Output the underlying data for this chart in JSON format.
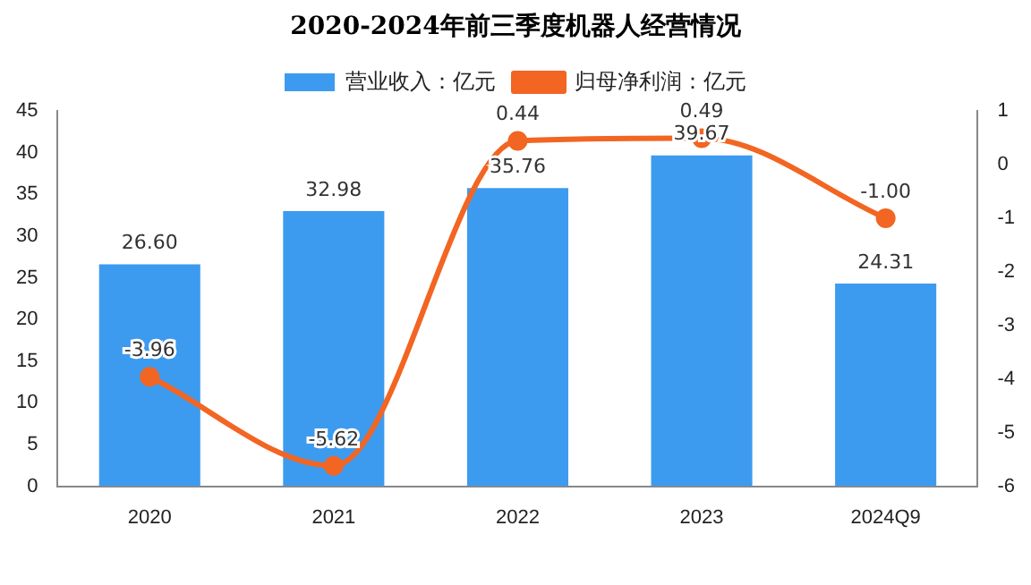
{
  "chart_data": {
    "type": "bar",
    "title": "2020-2024年前三季度机器人经营情况",
    "categories": [
      "2020",
      "2021",
      "2022",
      "2023",
      "2024Q9"
    ],
    "series": [
      {
        "name": "营业收入：亿元",
        "color": "#3d9bef",
        "values": [
          26.6,
          32.98,
          35.76,
          39.67,
          24.31
        ],
        "value_labels": [
          "26.60",
          "32.98",
          "35.76",
          "39.67",
          "24.31"
        ]
      },
      {
        "name": "归母净利润：亿元",
        "type": "line",
        "axis": "y2",
        "color": "#f26522",
        "marker": "circle",
        "values": [
          -3.96,
          -5.62,
          0.44,
          0.49,
          -1.0
        ],
        "value_labels": [
          "-3.96",
          "-5.62",
          "0.44",
          "0.49",
          "-1.00"
        ]
      }
    ],
    "ylim": [
      0,
      45
    ],
    "yticks": [
      0,
      5,
      10,
      15,
      20,
      25,
      30,
      35,
      40,
      45
    ],
    "y2lim": [
      -6,
      1
    ],
    "y2ticks": [
      -6,
      -5,
      -4,
      -3,
      -2,
      -1,
      0,
      1
    ],
    "grid": false,
    "legend": "top"
  }
}
